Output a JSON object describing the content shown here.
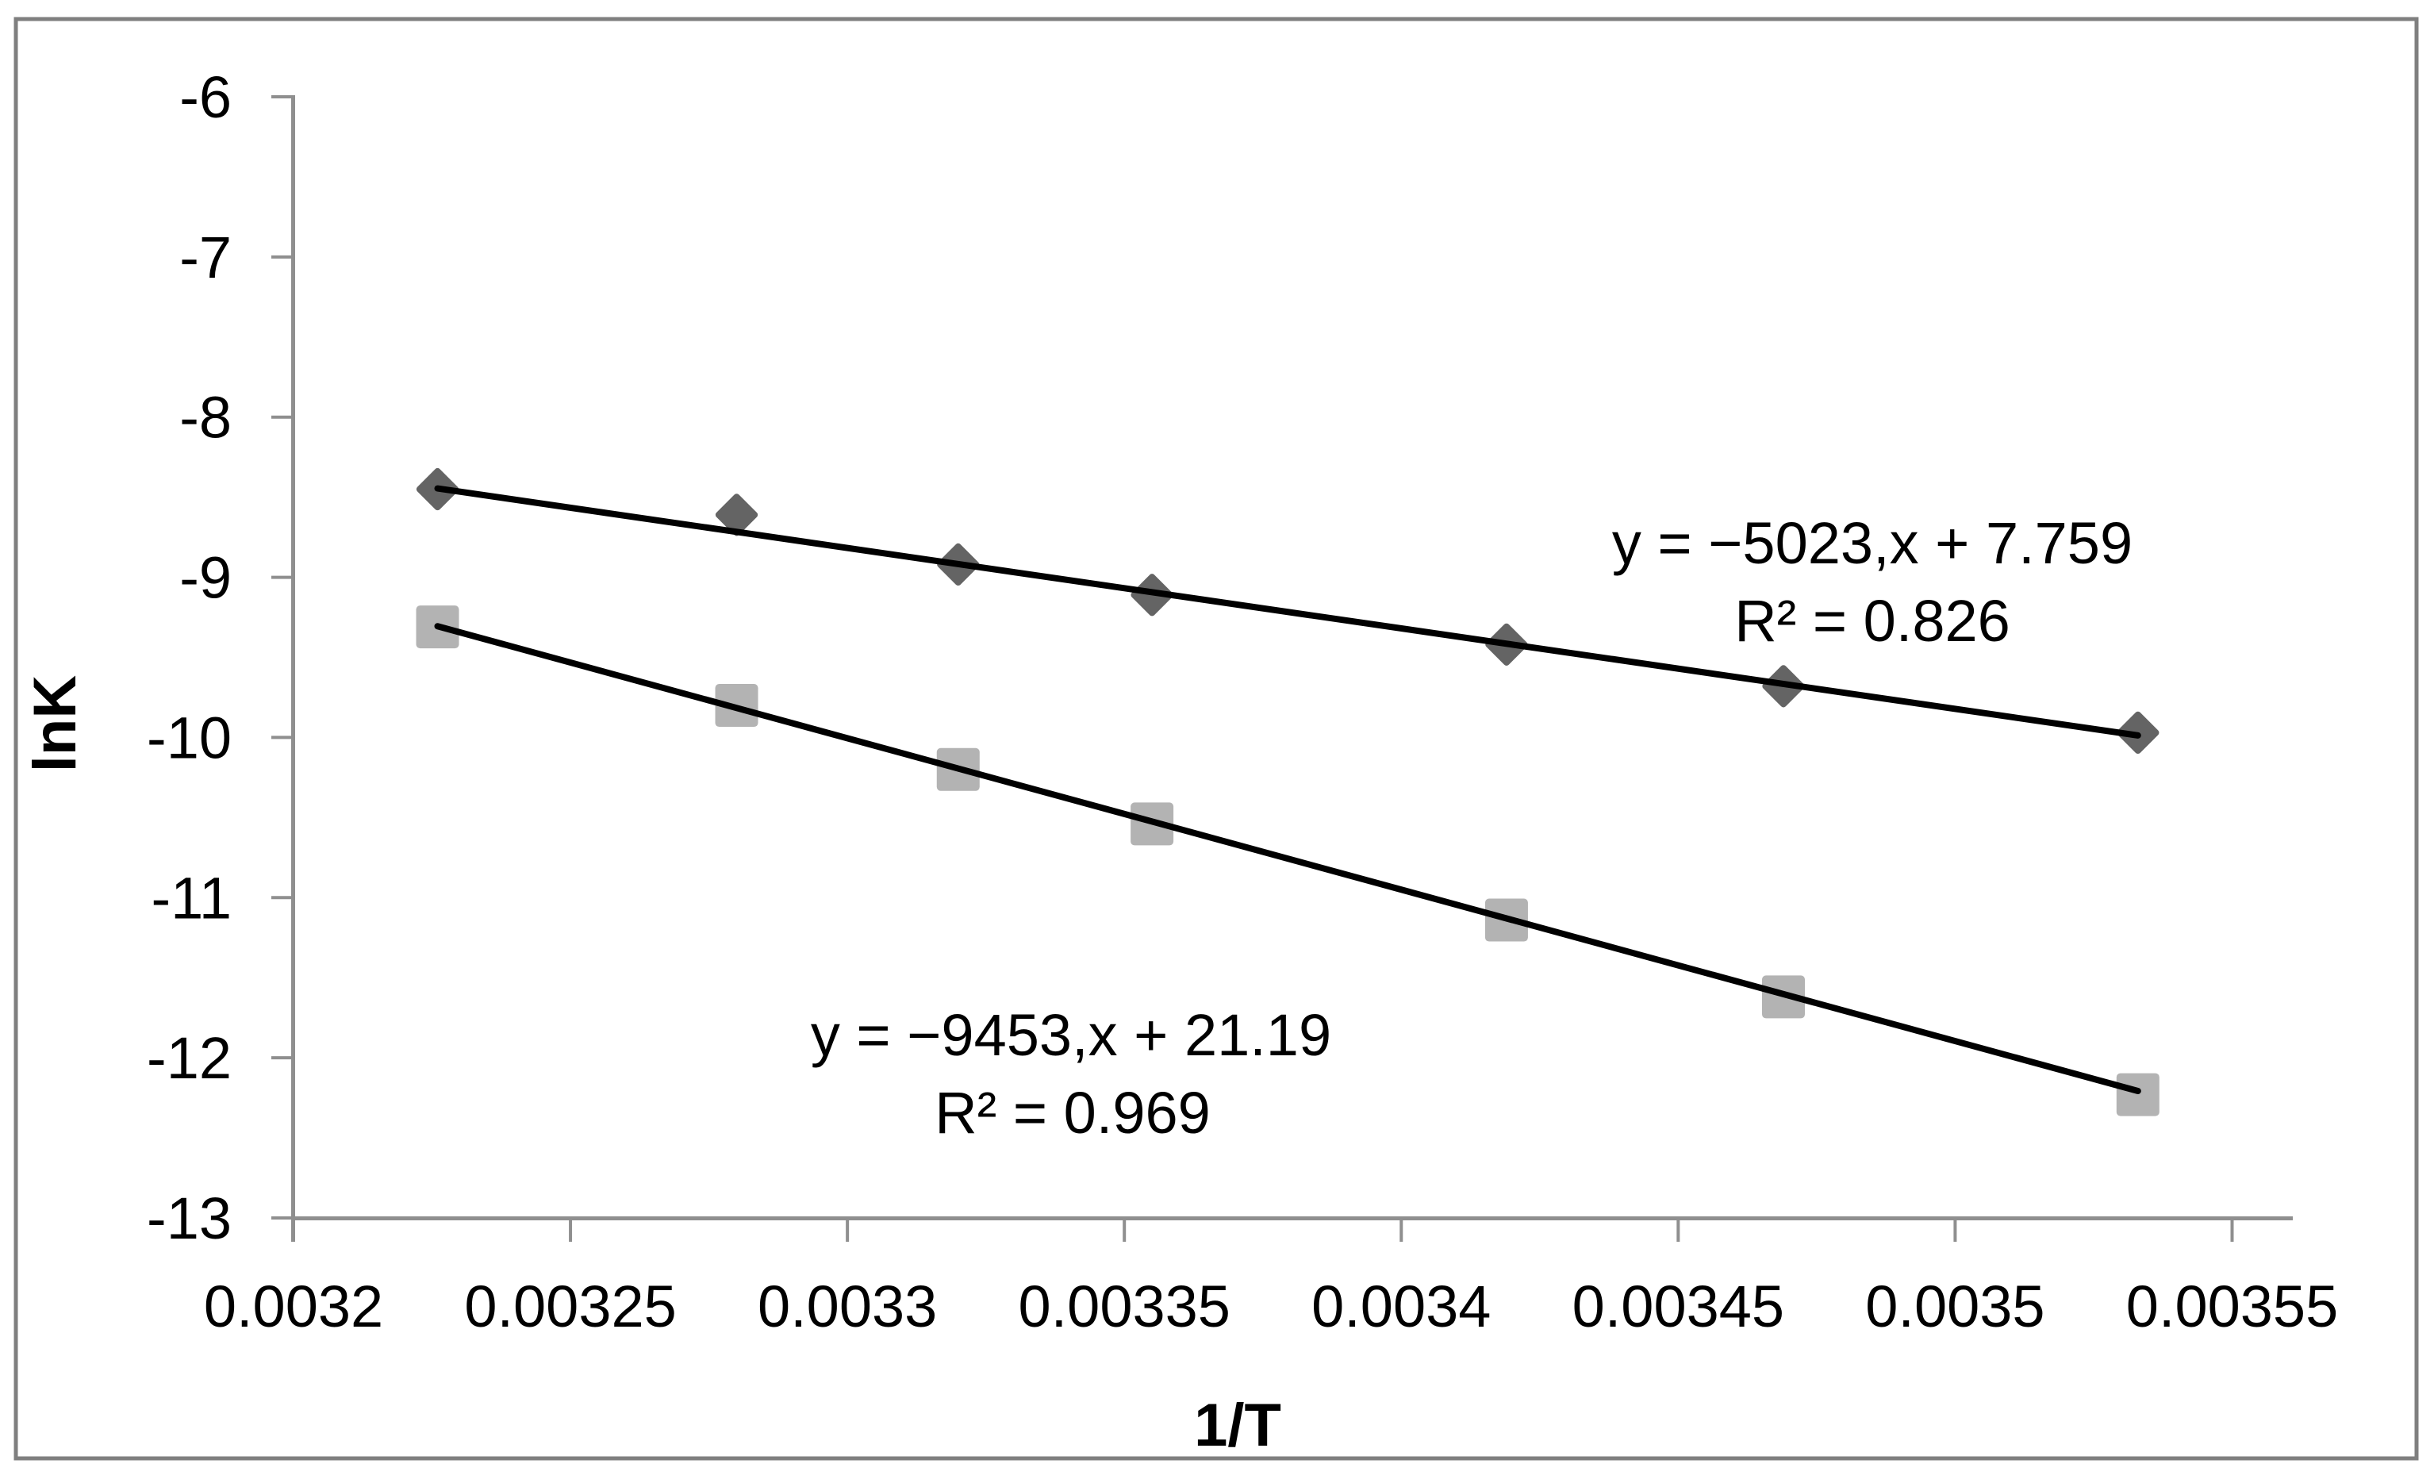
{
  "chart_data": {
    "type": "scatter",
    "title": "",
    "xlabel": "1/T",
    "ylabel": "lnK",
    "xlim": [
      0.0032,
      0.00355
    ],
    "ylim": [
      -13,
      -6
    ],
    "grid": false,
    "legend": "none",
    "x_tick_labels": [
      "0.0032",
      "0.00325",
      "0.0033",
      "0.00335",
      "0.0034",
      "0.00345",
      "0.0035",
      "0.00355"
    ],
    "x_tick_values": [
      0.0032,
      0.00325,
      0.0033,
      0.00335,
      0.0034,
      0.00345,
      0.0035,
      0.00355
    ],
    "y_tick_labels": [
      "-6",
      "-7",
      "-8",
      "-9",
      "-10",
      "-11",
      "-12",
      "-13"
    ],
    "y_tick_values": [
      -6,
      -7,
      -8,
      -9,
      -10,
      -11,
      -12,
      -13
    ],
    "series": [
      {
        "name": "diamond-series",
        "marker": "diamond",
        "color": "#646464",
        "x": [
          0.003226,
          0.00328,
          0.00332,
          0.003355,
          0.003419,
          0.003469,
          0.003533
        ],
        "y": [
          -8.45,
          -8.61,
          -8.92,
          -9.11,
          -9.42,
          -9.68,
          -9.97
        ],
        "trendline": {
          "slope": -5023,
          "intercept": 7.759,
          "r_squared": 0.826,
          "equation_label": "y = −5023,x + 7.759",
          "r2_label": "R² = 0.826"
        }
      },
      {
        "name": "square-series",
        "marker": "square",
        "color": "#b3b3b3",
        "x": [
          0.003226,
          0.00328,
          0.00332,
          0.003355,
          0.003419,
          0.003469,
          0.003533
        ],
        "y": [
          -9.31,
          -9.8,
          -10.2,
          -10.54,
          -11.14,
          -11.62,
          -12.23
        ],
        "trendline": {
          "slope": -9453,
          "intercept": 21.19,
          "r_squared": 0.969,
          "equation_label": "y = −9453,x + 21.19",
          "r2_label": "R² = 0.969"
        }
      }
    ],
    "colors": {
      "trendline": "#000000",
      "axis": "#8f8f8f",
      "frame": "#7f7f7f",
      "text": "#000000"
    }
  }
}
